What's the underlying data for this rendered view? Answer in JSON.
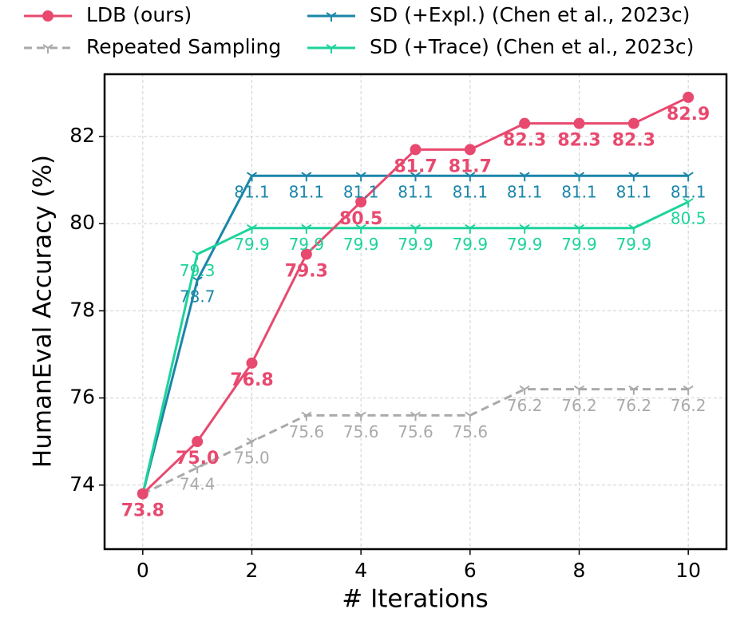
{
  "chart_data": {
    "type": "line",
    "x_label": "# Iterations",
    "y_label": "HumanEval Accuracy (%)",
    "x": [
      0,
      1,
      2,
      3,
      4,
      5,
      6,
      7,
      8,
      9,
      10
    ],
    "series": [
      {
        "name": "LDB (ours)",
        "color": "#e8496f",
        "linestyle": "solid",
        "values": [
          73.8,
          75.0,
          76.8,
          79.3,
          80.5,
          81.7,
          81.7,
          82.3,
          82.3,
          82.3,
          82.9
        ],
        "value_labels": [
          "73.8",
          "75.0",
          "76.8",
          "79.3",
          "80.5",
          "81.7",
          "81.7",
          "82.3",
          "82.3",
          "82.3",
          "82.9"
        ]
      },
      {
        "name": "Repeated Sampling",
        "color": "#aaaaaa",
        "linestyle": "dashed",
        "values": [
          73.8,
          74.4,
          75.0,
          75.6,
          75.6,
          75.6,
          75.6,
          76.2,
          76.2,
          76.2,
          76.2
        ],
        "value_labels": [
          null,
          "74.4",
          "75.0",
          "75.6",
          "75.6",
          "75.6",
          "75.6",
          "76.2",
          "76.2",
          "76.2",
          "76.2"
        ]
      },
      {
        "name": "SD (+Expl.) (Chen et al., 2023c)",
        "color": "#1b86a8",
        "linestyle": "solid",
        "values": [
          73.8,
          78.7,
          81.1,
          81.1,
          81.1,
          81.1,
          81.1,
          81.1,
          81.1,
          81.1,
          81.1
        ],
        "value_labels": [
          null,
          "78.7",
          "81.1",
          "81.1",
          "81.1",
          "81.1",
          "81.1",
          "81.1",
          "81.1",
          "81.1",
          "81.1"
        ]
      },
      {
        "name": "SD (+Trace) (Chen et al., 2023c)",
        "color": "#1dd39b",
        "linestyle": "solid",
        "values": [
          73.8,
          79.3,
          79.9,
          79.9,
          79.9,
          79.9,
          79.9,
          79.9,
          79.9,
          79.9,
          80.5
        ],
        "value_labels": [
          null,
          "79.3",
          "79.9",
          "79.9",
          "79.9",
          "79.9",
          "79.9",
          "79.9",
          "79.9",
          "79.9",
          "80.5"
        ]
      }
    ],
    "xlim": [
      -0.7,
      10.7
    ],
    "ylim": [
      72.53,
      83.43
    ],
    "xticks": [
      0,
      2,
      4,
      6,
      8,
      10
    ],
    "yticks": [
      74,
      76,
      78,
      80,
      82
    ],
    "grid": true,
    "legend": "top"
  }
}
